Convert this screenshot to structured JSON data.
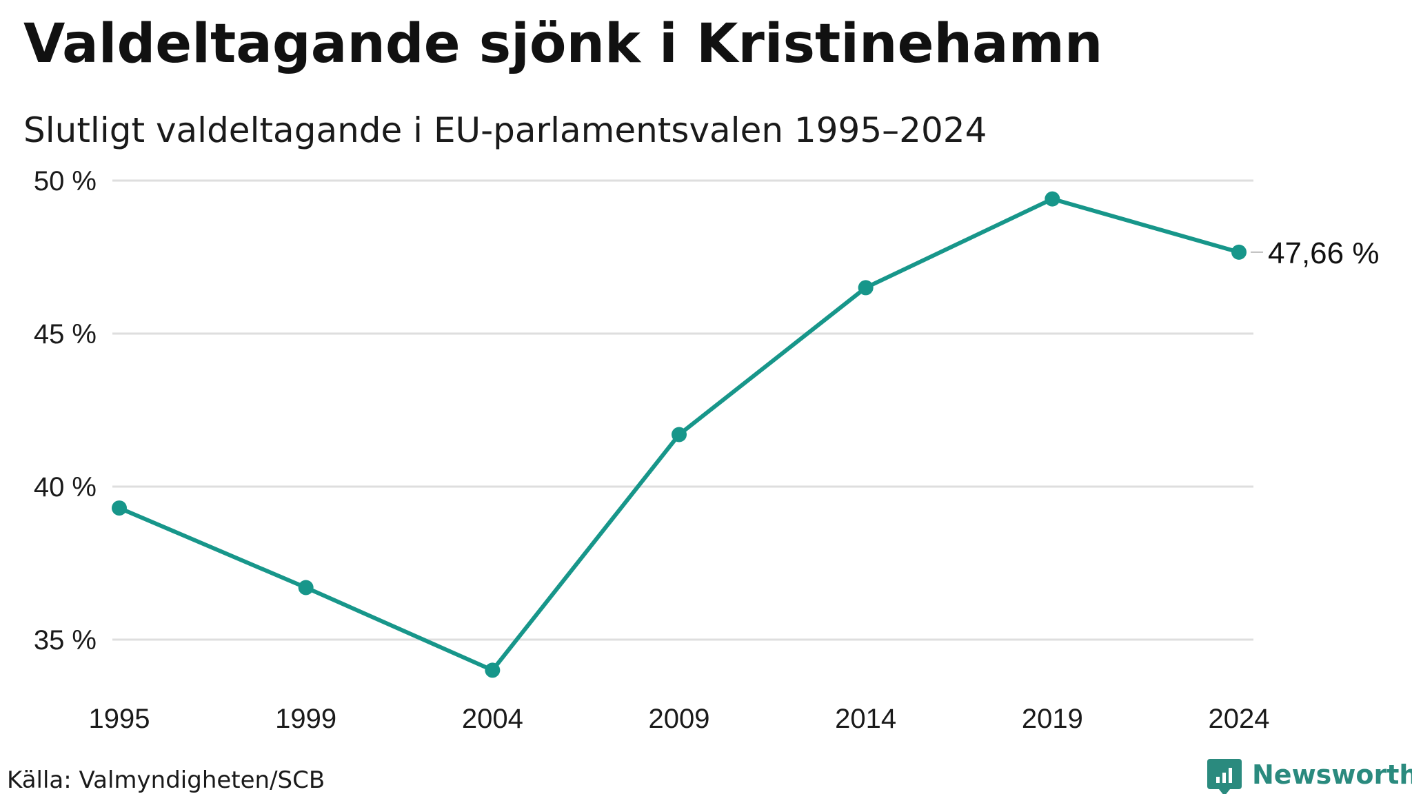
{
  "chart_data": {
    "type": "line",
    "title": "Valdeltagande sjönk i Kristinehamn",
    "subtitle": "Slutligt valdeltagande i EU-parlamentsvalen 1995–2024",
    "x": [
      "1995",
      "1999",
      "2004",
      "2009",
      "2014",
      "2019",
      "2024"
    ],
    "series": [
      {
        "values": [
          39.3,
          36.7,
          34.0,
          41.7,
          46.5,
          49.4,
          47.66
        ]
      }
    ],
    "ylim": [
      33,
      50
    ],
    "yticks": [
      {
        "value": 35,
        "label": "35 %"
      },
      {
        "value": 40,
        "label": "40 %"
      },
      {
        "value": 45,
        "label": "45 %"
      },
      {
        "value": 50,
        "label": "50 %"
      }
    ],
    "end_label": "47,66 %",
    "grid": true,
    "line_color": "#17968a",
    "grid_color": "#dedede"
  },
  "footer": {
    "source": "Källa: Valmyndigheten/SCB",
    "brand": "Newsworthy",
    "brand_color": "#2a8a7e",
    "brand_icon": "bar-chart-badge-icon"
  }
}
